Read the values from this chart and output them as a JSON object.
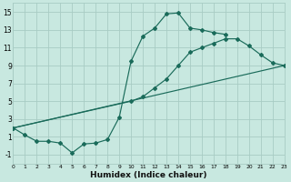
{
  "xlabel": "Humidex (Indice chaleur)",
  "bg_color": "#c8e8e0",
  "grid_color": "#a8ccc4",
  "line_color": "#1a6b5a",
  "xlim": [
    0,
    23
  ],
  "ylim": [
    -2,
    16
  ],
  "xticks": [
    0,
    1,
    2,
    3,
    4,
    5,
    6,
    7,
    8,
    9,
    10,
    11,
    12,
    13,
    14,
    15,
    16,
    17,
    18,
    19,
    20,
    21,
    22,
    23
  ],
  "yticks": [
    -1,
    1,
    3,
    5,
    7,
    9,
    11,
    13,
    15
  ],
  "curve1_x": [
    0,
    1,
    2,
    3,
    4,
    5,
    6,
    7,
    8,
    9,
    10,
    11,
    12,
    13,
    14,
    15,
    16,
    17,
    18
  ],
  "curve1_y": [
    2.0,
    1.2,
    0.5,
    0.5,
    0.3,
    -0.8,
    0.2,
    0.3,
    0.7,
    3.2,
    9.5,
    12.3,
    13.2,
    14.8,
    14.9,
    13.2,
    13.0,
    12.7,
    12.5
  ],
  "curve2_x": [
    0,
    10,
    11,
    12,
    13,
    14,
    15,
    16,
    17,
    18,
    19,
    20,
    21,
    22,
    23
  ],
  "curve2_y": [
    2.0,
    5.0,
    5.5,
    6.5,
    7.5,
    9.0,
    10.5,
    11.0,
    11.5,
    12.0,
    12.0,
    11.2,
    10.2,
    9.3,
    9.0
  ],
  "curve3_x": [
    0,
    23
  ],
  "curve3_y": [
    2.0,
    9.0
  ]
}
